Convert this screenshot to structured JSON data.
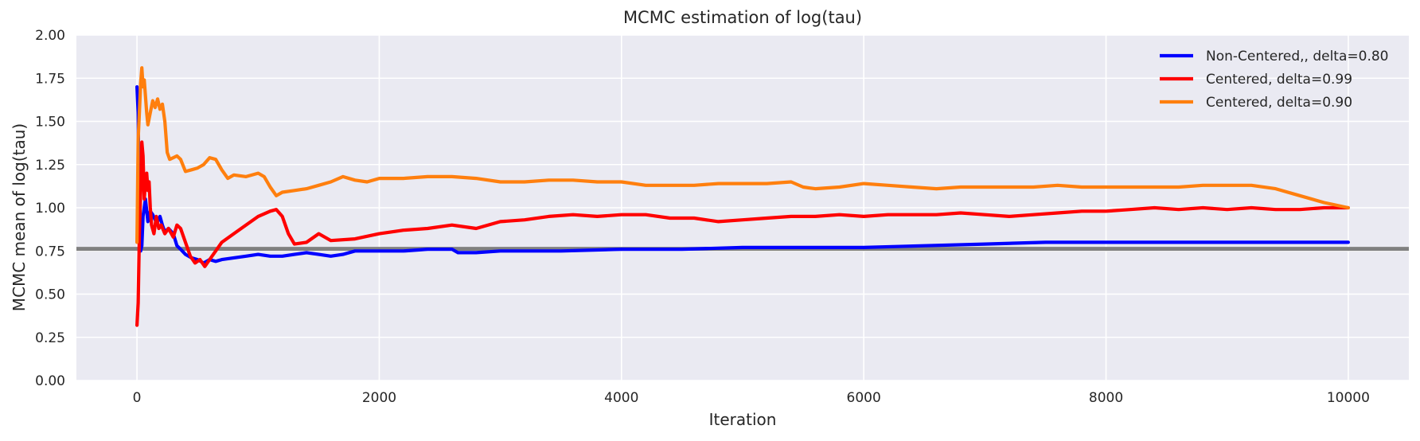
{
  "chart_data": {
    "type": "line",
    "title": "MCMC estimation of log(tau)",
    "xlabel": "Iteration",
    "ylabel": "MCMC mean of log(tau)",
    "xlim": [
      -500,
      10500
    ],
    "ylim": [
      0,
      2.0
    ],
    "x_ticks": [
      0,
      2000,
      4000,
      6000,
      8000,
      10000
    ],
    "x_tick_labels": [
      "0",
      "2000",
      "4000",
      "6000",
      "8000",
      "10000"
    ],
    "y_ticks": [
      0,
      0.25,
      0.5,
      0.75,
      1.0,
      1.25,
      1.5,
      1.75,
      2.0
    ],
    "y_tick_labels": [
      "0.00",
      "0.25",
      "0.50",
      "0.75",
      "1.00",
      "1.25",
      "1.50",
      "1.75",
      "2.00"
    ],
    "grid": true,
    "background": "#eaeaf2",
    "legend_position": "top-right",
    "reference_line": {
      "y": 0.762,
      "color": "#808080"
    },
    "series": [
      {
        "name": "Non-Centered,, delta=0.80",
        "color": "#0000ff",
        "points": [
          [
            0,
            1.7
          ],
          [
            10,
            1.55
          ],
          [
            20,
            0.76
          ],
          [
            30,
            0.75
          ],
          [
            40,
            0.78
          ],
          [
            50,
            0.95
          ],
          [
            70,
            1.05
          ],
          [
            90,
            0.92
          ],
          [
            110,
            0.98
          ],
          [
            130,
            0.96
          ],
          [
            150,
            0.93
          ],
          [
            170,
            0.92
          ],
          [
            190,
            0.95
          ],
          [
            210,
            0.9
          ],
          [
            230,
            0.86
          ],
          [
            260,
            0.88
          ],
          [
            300,
            0.85
          ],
          [
            330,
            0.78
          ],
          [
            360,
            0.76
          ],
          [
            400,
            0.73
          ],
          [
            450,
            0.71
          ],
          [
            500,
            0.7
          ],
          [
            550,
            0.68
          ],
          [
            600,
            0.7
          ],
          [
            650,
            0.69
          ],
          [
            700,
            0.7
          ],
          [
            800,
            0.71
          ],
          [
            900,
            0.72
          ],
          [
            1000,
            0.73
          ],
          [
            1100,
            0.72
          ],
          [
            1200,
            0.72
          ],
          [
            1300,
            0.73
          ],
          [
            1400,
            0.74
          ],
          [
            1500,
            0.73
          ],
          [
            1600,
            0.72
          ],
          [
            1700,
            0.73
          ],
          [
            1800,
            0.75
          ],
          [
            2000,
            0.75
          ],
          [
            2200,
            0.75
          ],
          [
            2400,
            0.76
          ],
          [
            2600,
            0.76
          ],
          [
            2650,
            0.74
          ],
          [
            2800,
            0.74
          ],
          [
            3000,
            0.75
          ],
          [
            3500,
            0.75
          ],
          [
            4000,
            0.76
          ],
          [
            4500,
            0.76
          ],
          [
            5000,
            0.77
          ],
          [
            5500,
            0.77
          ],
          [
            6000,
            0.77
          ],
          [
            6500,
            0.78
          ],
          [
            7000,
            0.79
          ],
          [
            7500,
            0.8
          ],
          [
            8000,
            0.8
          ],
          [
            8500,
            0.8
          ],
          [
            9000,
            0.8
          ],
          [
            9500,
            0.8
          ],
          [
            10000,
            0.8
          ]
        ]
      },
      {
        "name": "Centered, delta=0.99",
        "color": "#ff0000",
        "points": [
          [
            0,
            0.32
          ],
          [
            10,
            0.45
          ],
          [
            20,
            0.85
          ],
          [
            30,
            1.1
          ],
          [
            40,
            1.38
          ],
          [
            50,
            1.3
          ],
          [
            60,
            1.05
          ],
          [
            70,
            1.15
          ],
          [
            80,
            1.2
          ],
          [
            90,
            1.1
          ],
          [
            100,
            1.15
          ],
          [
            110,
            1.0
          ],
          [
            120,
            0.9
          ],
          [
            140,
            0.85
          ],
          [
            160,
            0.95
          ],
          [
            180,
            0.88
          ],
          [
            200,
            0.9
          ],
          [
            230,
            0.85
          ],
          [
            260,
            0.88
          ],
          [
            300,
            0.83
          ],
          [
            330,
            0.9
          ],
          [
            360,
            0.88
          ],
          [
            400,
            0.8
          ],
          [
            440,
            0.72
          ],
          [
            480,
            0.68
          ],
          [
            520,
            0.7
          ],
          [
            560,
            0.66
          ],
          [
            600,
            0.7
          ],
          [
            650,
            0.75
          ],
          [
            700,
            0.8
          ],
          [
            800,
            0.85
          ],
          [
            900,
            0.9
          ],
          [
            1000,
            0.95
          ],
          [
            1100,
            0.98
          ],
          [
            1150,
            0.99
          ],
          [
            1200,
            0.95
          ],
          [
            1250,
            0.85
          ],
          [
            1300,
            0.79
          ],
          [
            1400,
            0.8
          ],
          [
            1500,
            0.85
          ],
          [
            1600,
            0.81
          ],
          [
            1800,
            0.82
          ],
          [
            2000,
            0.85
          ],
          [
            2200,
            0.87
          ],
          [
            2400,
            0.88
          ],
          [
            2600,
            0.9
          ],
          [
            2800,
            0.88
          ],
          [
            3000,
            0.92
          ],
          [
            3200,
            0.93
          ],
          [
            3400,
            0.95
          ],
          [
            3600,
            0.96
          ],
          [
            3800,
            0.95
          ],
          [
            4000,
            0.96
          ],
          [
            4200,
            0.96
          ],
          [
            4400,
            0.94
          ],
          [
            4600,
            0.94
          ],
          [
            4800,
            0.92
          ],
          [
            5000,
            0.93
          ],
          [
            5200,
            0.94
          ],
          [
            5400,
            0.95
          ],
          [
            5600,
            0.95
          ],
          [
            5800,
            0.96
          ],
          [
            6000,
            0.95
          ],
          [
            6200,
            0.96
          ],
          [
            6400,
            0.96
          ],
          [
            6600,
            0.96
          ],
          [
            6800,
            0.97
          ],
          [
            7000,
            0.96
          ],
          [
            7200,
            0.95
          ],
          [
            7400,
            0.96
          ],
          [
            7600,
            0.97
          ],
          [
            7800,
            0.98
          ],
          [
            8000,
            0.98
          ],
          [
            8200,
            0.99
          ],
          [
            8400,
            1.0
          ],
          [
            8600,
            0.99
          ],
          [
            8800,
            1.0
          ],
          [
            9000,
            0.99
          ],
          [
            9200,
            1.0
          ],
          [
            9400,
            0.99
          ],
          [
            9600,
            0.99
          ],
          [
            9800,
            1.0
          ],
          [
            10000,
            1.0
          ]
        ]
      },
      {
        "name": "Centered, delta=0.90",
        "color": "#ff7f0e",
        "points": [
          [
            0,
            0.8
          ],
          [
            10,
            1.4
          ],
          [
            20,
            1.55
          ],
          [
            30,
            1.72
          ],
          [
            40,
            1.81
          ],
          [
            50,
            1.7
          ],
          [
            60,
            1.74
          ],
          [
            70,
            1.65
          ],
          [
            80,
            1.55
          ],
          [
            90,
            1.48
          ],
          [
            110,
            1.55
          ],
          [
            130,
            1.62
          ],
          [
            150,
            1.58
          ],
          [
            170,
            1.63
          ],
          [
            190,
            1.57
          ],
          [
            210,
            1.6
          ],
          [
            230,
            1.5
          ],
          [
            250,
            1.32
          ],
          [
            270,
            1.28
          ],
          [
            300,
            1.29
          ],
          [
            330,
            1.3
          ],
          [
            360,
            1.28
          ],
          [
            400,
            1.21
          ],
          [
            450,
            1.22
          ],
          [
            500,
            1.23
          ],
          [
            550,
            1.25
          ],
          [
            600,
            1.29
          ],
          [
            650,
            1.28
          ],
          [
            700,
            1.22
          ],
          [
            750,
            1.17
          ],
          [
            800,
            1.19
          ],
          [
            900,
            1.18
          ],
          [
            1000,
            1.2
          ],
          [
            1050,
            1.18
          ],
          [
            1100,
            1.12
          ],
          [
            1150,
            1.07
          ],
          [
            1200,
            1.09
          ],
          [
            1300,
            1.1
          ],
          [
            1400,
            1.11
          ],
          [
            1500,
            1.13
          ],
          [
            1600,
            1.15
          ],
          [
            1700,
            1.18
          ],
          [
            1800,
            1.16
          ],
          [
            1900,
            1.15
          ],
          [
            2000,
            1.17
          ],
          [
            2200,
            1.17
          ],
          [
            2400,
            1.18
          ],
          [
            2600,
            1.18
          ],
          [
            2800,
            1.17
          ],
          [
            3000,
            1.15
          ],
          [
            3200,
            1.15
          ],
          [
            3400,
            1.16
          ],
          [
            3600,
            1.16
          ],
          [
            3800,
            1.15
          ],
          [
            4000,
            1.15
          ],
          [
            4200,
            1.13
          ],
          [
            4400,
            1.13
          ],
          [
            4600,
            1.13
          ],
          [
            4800,
            1.14
          ],
          [
            5000,
            1.14
          ],
          [
            5200,
            1.14
          ],
          [
            5400,
            1.15
          ],
          [
            5500,
            1.12
          ],
          [
            5600,
            1.11
          ],
          [
            5800,
            1.12
          ],
          [
            6000,
            1.14
          ],
          [
            6200,
            1.13
          ],
          [
            6400,
            1.12
          ],
          [
            6600,
            1.11
          ],
          [
            6800,
            1.12
          ],
          [
            7000,
            1.12
          ],
          [
            7200,
            1.12
          ],
          [
            7400,
            1.12
          ],
          [
            7600,
            1.13
          ],
          [
            7800,
            1.12
          ],
          [
            8000,
            1.12
          ],
          [
            8200,
            1.12
          ],
          [
            8400,
            1.12
          ],
          [
            8600,
            1.12
          ],
          [
            8800,
            1.13
          ],
          [
            9000,
            1.13
          ],
          [
            9200,
            1.13
          ],
          [
            9400,
            1.11
          ],
          [
            9600,
            1.07
          ],
          [
            9800,
            1.03
          ],
          [
            10000,
            1.0
          ]
        ]
      }
    ]
  }
}
